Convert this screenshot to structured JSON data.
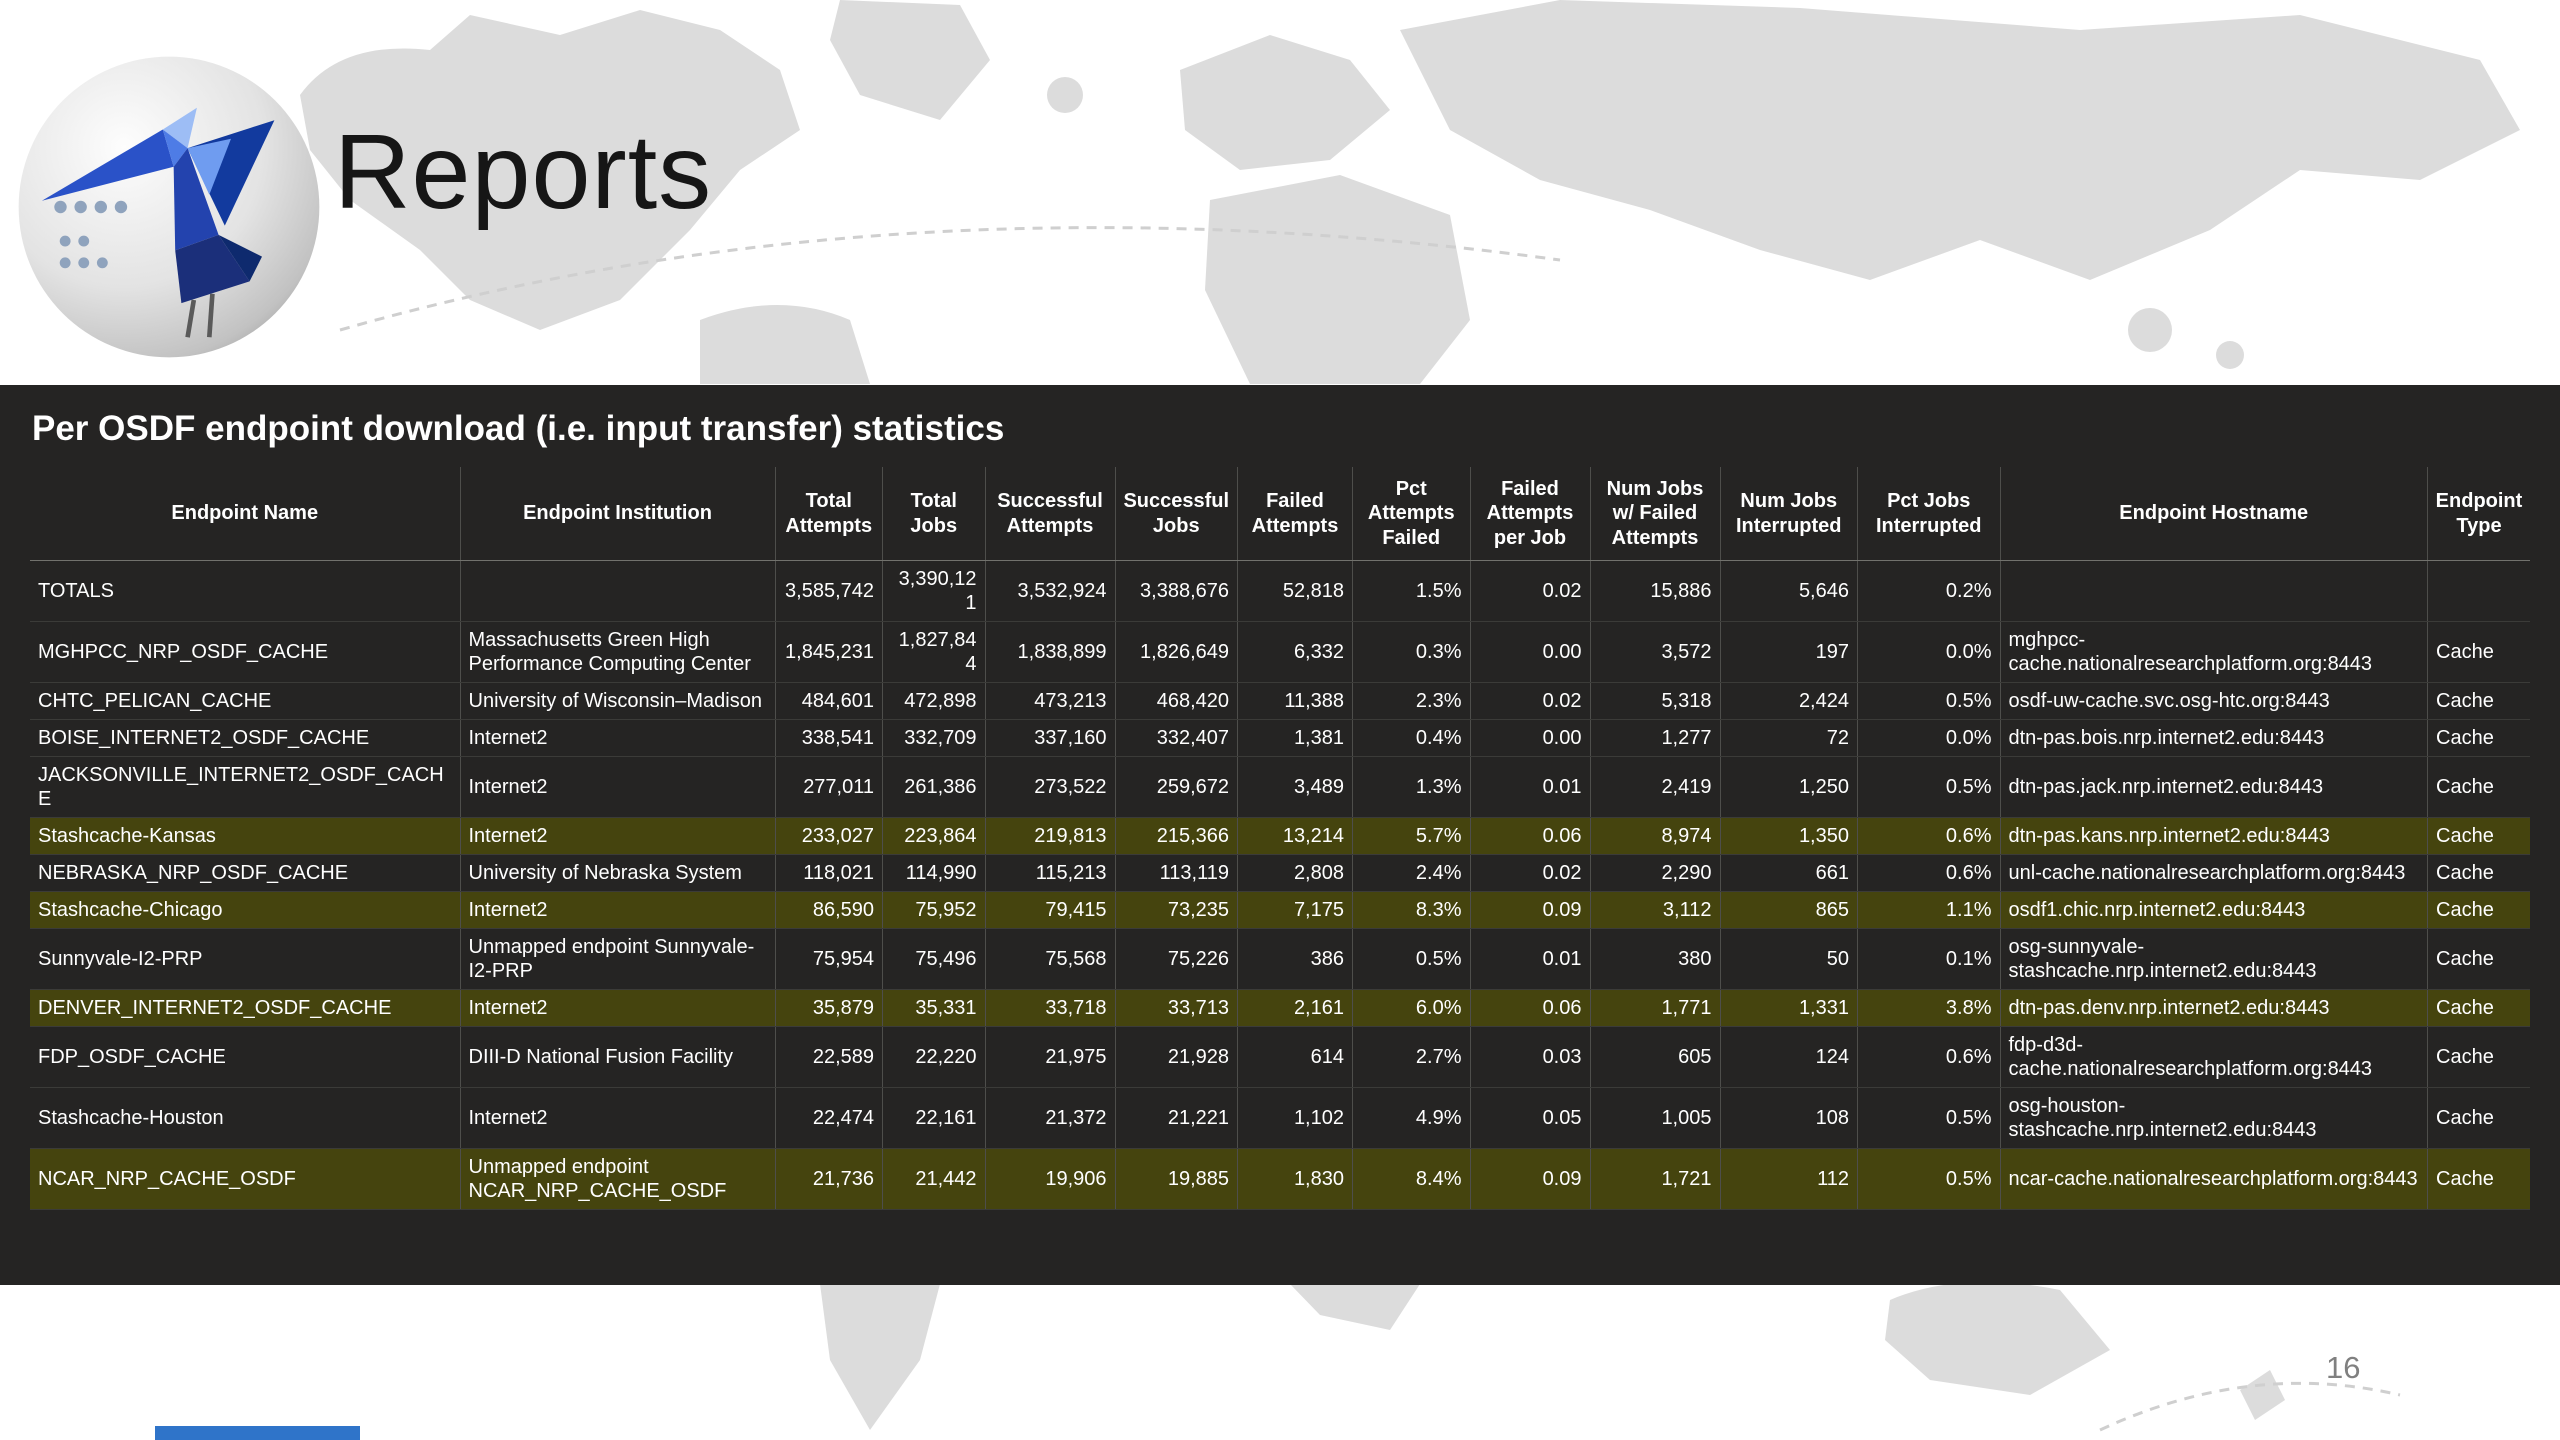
{
  "slide": {
    "title": "Reports",
    "page_number": "16"
  },
  "report": {
    "title": "Per OSDF endpoint download (i.e. input transfer) statistics"
  },
  "colors": {
    "panel_background": "#252423",
    "row_highlight": "#45440e",
    "accent_blue": "#2F74C9",
    "map_gray": "#dcdcdc"
  },
  "icons": {
    "logo": "pelican-logo",
    "background": "world-map"
  },
  "table": {
    "columns": [
      "Endpoint Name",
      "Endpoint Institution",
      "Total Attempts",
      "Total Jobs",
      "Successful Attempts",
      "Successful Jobs",
      "Failed Attempts",
      "Pct Attempts Failed",
      "Failed Attempts per Job",
      "Num Jobs w/ Failed Attempts",
      "Num Jobs Interrupted",
      "Pct Jobs Interrupted",
      "Endpoint Hostname",
      "Endpoint Type"
    ],
    "rows": [
      {
        "highlight": false,
        "cells": [
          "TOTALS",
          "",
          "3,585,742",
          "3,390,121",
          "3,532,924",
          "3,388,676",
          "52,818",
          "1.5%",
          "0.02",
          "15,886",
          "5,646",
          "0.2%",
          "",
          ""
        ]
      },
      {
        "highlight": false,
        "cells": [
          "MGHPCC_NRP_OSDF_CACHE",
          "Massachusetts Green High Performance Computing Center",
          "1,845,231",
          "1,827,844",
          "1,838,899",
          "1,826,649",
          "6,332",
          "0.3%",
          "0.00",
          "3,572",
          "197",
          "0.0%",
          "mghpcc-cache.nationalresearchplatform.org:8443",
          "Cache"
        ]
      },
      {
        "highlight": false,
        "cells": [
          "CHTC_PELICAN_CACHE",
          "University of Wisconsin–Madison",
          "484,601",
          "472,898",
          "473,213",
          "468,420",
          "11,388",
          "2.3%",
          "0.02",
          "5,318",
          "2,424",
          "0.5%",
          "osdf-uw-cache.svc.osg-htc.org:8443",
          "Cache"
        ]
      },
      {
        "highlight": false,
        "cells": [
          "BOISE_INTERNET2_OSDF_CACHE",
          "Internet2",
          "338,541",
          "332,709",
          "337,160",
          "332,407",
          "1,381",
          "0.4%",
          "0.00",
          "1,277",
          "72",
          "0.0%",
          "dtn-pas.bois.nrp.internet2.edu:8443",
          "Cache"
        ]
      },
      {
        "highlight": false,
        "cells": [
          "JACKSONVILLE_INTERNET2_OSDF_CACHE",
          "Internet2",
          "277,011",
          "261,386",
          "273,522",
          "259,672",
          "3,489",
          "1.3%",
          "0.01",
          "2,419",
          "1,250",
          "0.5%",
          "dtn-pas.jack.nrp.internet2.edu:8443",
          "Cache"
        ]
      },
      {
        "highlight": true,
        "cells": [
          "Stashcache-Kansas",
          "Internet2",
          "233,027",
          "223,864",
          "219,813",
          "215,366",
          "13,214",
          "5.7%",
          "0.06",
          "8,974",
          "1,350",
          "0.6%",
          "dtn-pas.kans.nrp.internet2.edu:8443",
          "Cache"
        ]
      },
      {
        "highlight": false,
        "cells": [
          "NEBRASKA_NRP_OSDF_CACHE",
          "University of Nebraska System",
          "118,021",
          "114,990",
          "115,213",
          "113,119",
          "2,808",
          "2.4%",
          "0.02",
          "2,290",
          "661",
          "0.6%",
          "unl-cache.nationalresearchplatform.org:8443",
          "Cache"
        ]
      },
      {
        "highlight": true,
        "cells": [
          "Stashcache-Chicago",
          "Internet2",
          "86,590",
          "75,952",
          "79,415",
          "73,235",
          "7,175",
          "8.3%",
          "0.09",
          "3,112",
          "865",
          "1.1%",
          "osdf1.chic.nrp.internet2.edu:8443",
          "Cache"
        ]
      },
      {
        "highlight": false,
        "cells": [
          "Sunnyvale-I2-PRP",
          "Unmapped endpoint Sunnyvale-I2-PRP",
          "75,954",
          "75,496",
          "75,568",
          "75,226",
          "386",
          "0.5%",
          "0.01",
          "380",
          "50",
          "0.1%",
          "osg-sunnyvale-stashcache.nrp.internet2.edu:8443",
          "Cache"
        ]
      },
      {
        "highlight": true,
        "cells": [
          "DENVER_INTERNET2_OSDF_CACHE",
          "Internet2",
          "35,879",
          "35,331",
          "33,718",
          "33,713",
          "2,161",
          "6.0%",
          "0.06",
          "1,771",
          "1,331",
          "3.8%",
          "dtn-pas.denv.nrp.internet2.edu:8443",
          "Cache"
        ]
      },
      {
        "highlight": false,
        "cells": [
          "FDP_OSDF_CACHE",
          "DIII-D National Fusion Facility",
          "22,589",
          "22,220",
          "21,975",
          "21,928",
          "614",
          "2.7%",
          "0.03",
          "605",
          "124",
          "0.6%",
          "fdp-d3d-cache.nationalresearchplatform.org:8443",
          "Cache"
        ]
      },
      {
        "highlight": false,
        "cells": [
          "Stashcache-Houston",
          "Internet2",
          "22,474",
          "22,161",
          "21,372",
          "21,221",
          "1,102",
          "4.9%",
          "0.05",
          "1,005",
          "108",
          "0.5%",
          "osg-houston-stashcache.nrp.internet2.edu:8443",
          "Cache"
        ]
      },
      {
        "highlight": true,
        "cells": [
          "NCAR_NRP_CACHE_OSDF",
          "Unmapped endpoint NCAR_NRP_CACHE_OSDF",
          "21,736",
          "21,442",
          "19,906",
          "19,885",
          "1,830",
          "8.4%",
          "0.09",
          "1,721",
          "112",
          "0.5%",
          "ncar-cache.nationalresearchplatform.org:8443",
          "Cache"
        ]
      }
    ]
  }
}
